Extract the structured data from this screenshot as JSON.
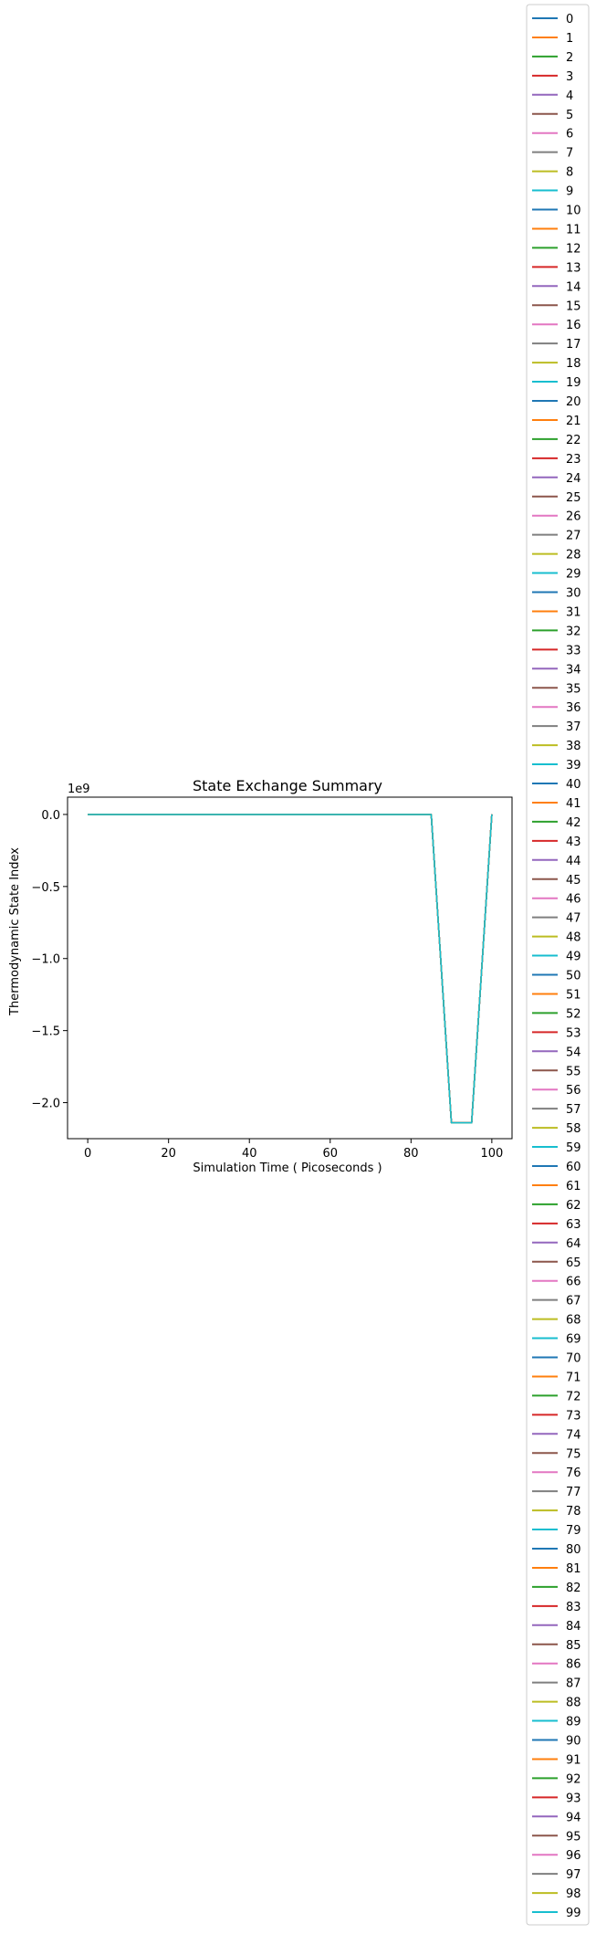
{
  "chart_data": {
    "type": "line",
    "title": "State Exchange Summary",
    "xlabel": "Simulation Time ( Picoseconds )",
    "ylabel": "Thermodynamic State Index",
    "xlim": [
      -5,
      105
    ],
    "ylim": [
      -2250000000.0,
      120000000.0
    ],
    "x_ticks": [
      0,
      20,
      40,
      60,
      80,
      100
    ],
    "x_tick_labels": [
      "0",
      "20",
      "40",
      "60",
      "80",
      "100"
    ],
    "y_ticks": [
      0,
      -500000000.0,
      -1000000000.0,
      -1500000000.0,
      -2000000000.0
    ],
    "y_tick_labels": [
      "0.0",
      "−0.5",
      "−1.0",
      "−1.5",
      "−2.0"
    ],
    "y_offset_label": "1e9",
    "grid": false,
    "legend_placement": "outside right",
    "palette": [
      "#1f77b4",
      "#ff7f0e",
      "#2ca02c",
      "#d62728",
      "#9467bd",
      "#8c564b",
      "#e377c2",
      "#7f7f7f",
      "#bcbd22",
      "#17becf"
    ],
    "series_names": [
      "0",
      "1",
      "2",
      "3",
      "4",
      "5",
      "6",
      "7",
      "8",
      "9",
      "10",
      "11",
      "12",
      "13",
      "14",
      "15",
      "16",
      "17",
      "18",
      "19",
      "20",
      "21",
      "22",
      "23",
      "24",
      "25",
      "26",
      "27",
      "28",
      "29",
      "30",
      "31",
      "32",
      "33",
      "34",
      "35",
      "36",
      "37",
      "38",
      "39",
      "40",
      "41",
      "42",
      "43",
      "44",
      "45",
      "46",
      "47",
      "48",
      "49",
      "50",
      "51",
      "52",
      "53",
      "54",
      "55",
      "56",
      "57",
      "58",
      "59",
      "60",
      "61",
      "62",
      "63",
      "64",
      "65",
      "66",
      "67",
      "68",
      "69",
      "70",
      "71",
      "72",
      "73",
      "74",
      "75",
      "76",
      "77",
      "78",
      "79",
      "80",
      "81",
      "82",
      "83",
      "84",
      "85",
      "86",
      "87",
      "88",
      "89",
      "90",
      "91",
      "92",
      "93",
      "94",
      "95",
      "96",
      "97",
      "98",
      "99"
    ],
    "shared_series": {
      "x": [
        0,
        85,
        90,
        95,
        100
      ],
      "y": [
        0,
        0,
        -2140000000.0,
        -2140000000.0,
        0
      ]
    }
  }
}
